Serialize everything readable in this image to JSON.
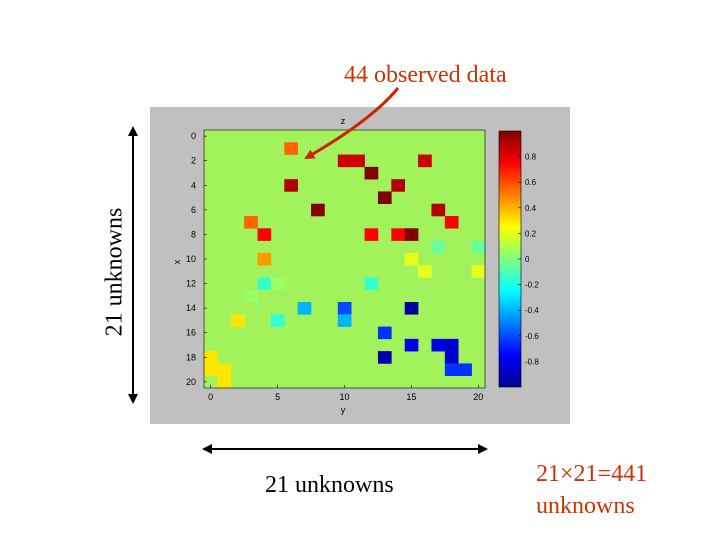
{
  "annotation": "44 observed data",
  "left_label": "21 unknowns",
  "bottom_label": "21 unknowns",
  "total_label_line1": "21×21=441",
  "total_label_line2": "unknowns",
  "figure": {
    "title": "z",
    "xlabel": "y",
    "ylabel": "x",
    "x_ticks": [
      "0",
      "5",
      "10",
      "15",
      "20"
    ],
    "y_ticks": [
      "0",
      "2",
      "4",
      "6",
      "8",
      "10",
      "12",
      "14",
      "16",
      "18",
      "20"
    ],
    "colorbar_ticks": [
      "0.8",
      "0.6",
      "0.4",
      "0.2",
      "0",
      "-0.2",
      "-0.4",
      "-0.6",
      "-0.8"
    ],
    "grid_size": 21,
    "background_value": 0,
    "value_range": [
      -1,
      1
    ],
    "colors": {
      "panel": "#c0c0c0",
      "background_field": "#a2f25c",
      "arrow": "#cc2200",
      "annotation_text": "#cc3300"
    },
    "observations": [
      {
        "x": 0,
        "y": 18,
        "v": 0.3
      },
      {
        "x": 0,
        "y": 19,
        "v": 0.3
      },
      {
        "x": 1,
        "y": 20,
        "v": 0.3
      },
      {
        "x": 2,
        "y": 15,
        "v": 0.3
      },
      {
        "x": 1,
        "y": 19,
        "v": 0.3
      },
      {
        "x": 3,
        "y": 7,
        "v": 0.55
      },
      {
        "x": 4,
        "y": 8,
        "v": 0.75
      },
      {
        "x": 4,
        "y": 10,
        "v": 0.45
      },
      {
        "x": 4,
        "y": 12,
        "v": -0.15
      },
      {
        "x": 5,
        "y": 15,
        "v": -0.15
      },
      {
        "x": 6,
        "y": 1,
        "v": 0.55
      },
      {
        "x": 6,
        "y": 4,
        "v": 0.9
      },
      {
        "x": 8,
        "y": 6,
        "v": 1.0
      },
      {
        "x": 10,
        "y": 2,
        "v": 0.85
      },
      {
        "x": 10,
        "y": 14,
        "v": -0.6
      },
      {
        "x": 11,
        "y": 2,
        "v": 0.85
      },
      {
        "x": 12,
        "y": 3,
        "v": 1.0
      },
      {
        "x": 12,
        "y": 8,
        "v": 0.75
      },
      {
        "x": 12,
        "y": 12,
        "v": -0.15
      },
      {
        "x": 13,
        "y": 5,
        "v": 1.0
      },
      {
        "x": 13,
        "y": 16,
        "v": -0.65
      },
      {
        "x": 14,
        "y": 4,
        "v": 0.9
      },
      {
        "x": 14,
        "y": 8,
        "v": 0.75
      },
      {
        "x": 15,
        "y": 8,
        "v": 1.0
      },
      {
        "x": 15,
        "y": 10,
        "v": 0.2
      },
      {
        "x": 15,
        "y": 17,
        "v": -0.8
      },
      {
        "x": 16,
        "y": 2,
        "v": 0.85
      },
      {
        "x": 16,
        "y": 11,
        "v": 0.2
      },
      {
        "x": 17,
        "y": 6,
        "v": 0.9
      },
      {
        "x": 17,
        "y": 9,
        "v": -0.05
      },
      {
        "x": 18,
        "y": 7,
        "v": 0.75
      },
      {
        "x": 18,
        "y": 17,
        "v": -0.85
      },
      {
        "x": 18,
        "y": 18,
        "v": -0.85
      },
      {
        "x": 18,
        "y": 19,
        "v": -0.65
      },
      {
        "x": 19,
        "y": 19,
        "v": -0.65
      },
      {
        "x": 20,
        "y": 9,
        "v": -0.05
      },
      {
        "x": 20,
        "y": 11,
        "v": 0.2
      },
      {
        "x": 5,
        "y": 12,
        "v": 0.05
      },
      {
        "x": 3,
        "y": 13,
        "v": 0.05
      },
      {
        "x": 7,
        "y": 14,
        "v": -0.4
      },
      {
        "x": 10,
        "y": 15,
        "v": -0.4
      },
      {
        "x": 13,
        "y": 18,
        "v": -0.9
      },
      {
        "x": 17,
        "y": 17,
        "v": -0.8
      },
      {
        "x": 15,
        "y": 14,
        "v": -0.95
      }
    ]
  }
}
